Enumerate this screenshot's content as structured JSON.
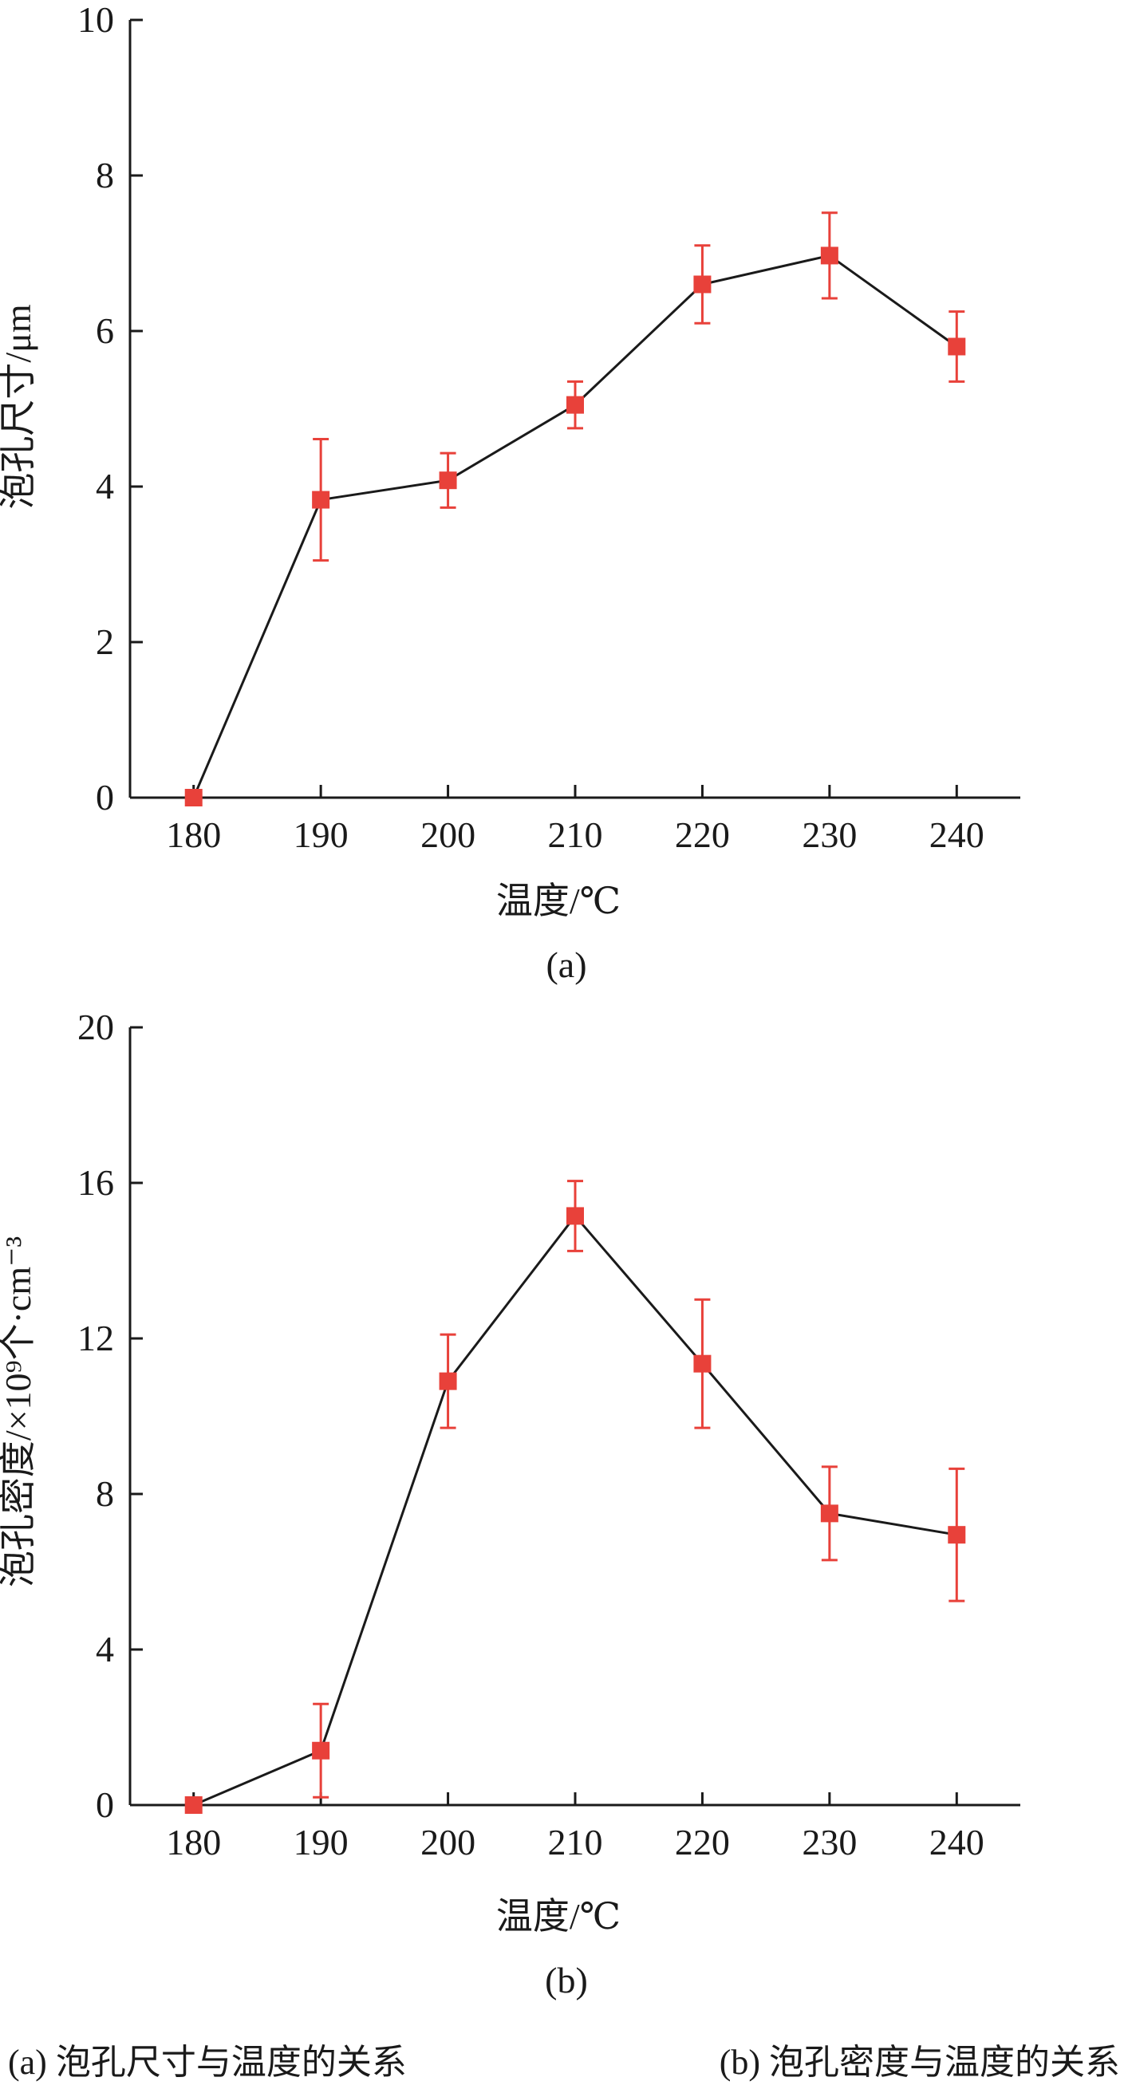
{
  "chart_data": [
    {
      "type": "line",
      "panel_label": "(a)",
      "xlabel": "温度/℃",
      "ylabel": "泡孔尺寸/μm",
      "x": [
        180,
        190,
        200,
        210,
        220,
        230,
        240
      ],
      "x_ticks": [
        "180",
        "190",
        "200",
        "210",
        "220",
        "230",
        "240"
      ],
      "y_ticks": [
        "0",
        "2",
        "4",
        "6",
        "8",
        "10"
      ],
      "ylim": [
        0,
        10
      ],
      "xlim": [
        175,
        245
      ],
      "series": [
        {
          "values": [
            0,
            3.83,
            4.08,
            5.05,
            6.6,
            6.97,
            5.8
          ],
          "err_low": [
            0,
            0.78,
            0.35,
            0.3,
            0.5,
            0.55,
            0.45
          ],
          "err_high": [
            0,
            0.78,
            0.35,
            0.3,
            0.5,
            0.55,
            0.45
          ]
        }
      ],
      "colors": {
        "marker": "#e8413a",
        "line": "#1a1a1a"
      }
    },
    {
      "type": "line",
      "panel_label": "(b)",
      "xlabel": "温度/℃",
      "ylabel": "泡孔密度/×10⁹个·cm⁻³",
      "x": [
        180,
        190,
        200,
        210,
        220,
        230,
        240
      ],
      "x_ticks": [
        "180",
        "190",
        "200",
        "210",
        "220",
        "230",
        "240"
      ],
      "y_ticks": [
        "0",
        "4",
        "8",
        "12",
        "16",
        "20"
      ],
      "ylim": [
        0,
        20
      ],
      "xlim": [
        175,
        245
      ],
      "series": [
        {
          "values": [
            0,
            1.4,
            10.9,
            15.15,
            11.35,
            7.5,
            6.95
          ],
          "err_low": [
            0,
            1.2,
            1.2,
            0.9,
            1.65,
            1.2,
            1.7
          ],
          "err_high": [
            0,
            1.2,
            1.2,
            0.9,
            1.65,
            1.2,
            1.7
          ]
        }
      ],
      "colors": {
        "marker": "#e8413a",
        "line": "#1a1a1a"
      }
    }
  ],
  "caption": {
    "a": "(a) 泡孔尺寸与温度的关系",
    "b": "(b) 泡孔密度与温度的关系"
  }
}
